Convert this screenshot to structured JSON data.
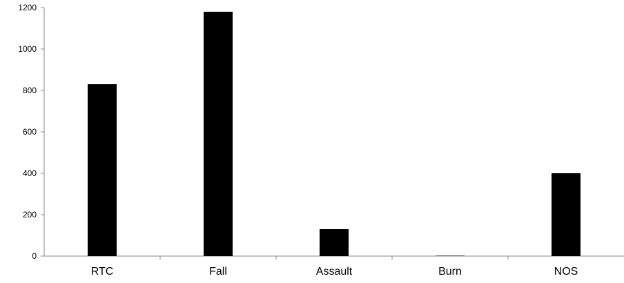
{
  "chart_data": {
    "type": "bar",
    "title": "",
    "xlabel": "",
    "ylabel": "",
    "categories": [
      "RTC",
      "Fall",
      "Assault",
      "Burn",
      "NOS"
    ],
    "values": [
      830,
      1180,
      130,
      2,
      400
    ],
    "ylim": [
      0,
      1200
    ],
    "yticks": [
      0,
      200,
      400,
      600,
      800,
      1000,
      1200
    ],
    "grid": false,
    "legend": "none",
    "bar_color": "#000000",
    "axis_color": "#888888"
  }
}
